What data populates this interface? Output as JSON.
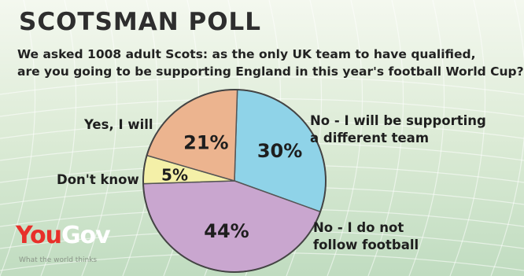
{
  "chart_data": {
    "type": "pie",
    "title": "SCOTSMAN POLL",
    "subtitle": [
      "We asked 1008 adult Scots: as the only UK team to have qualified,",
      "are you going to be supporting England in this year's football World Cup?"
    ],
    "slices": [
      {
        "label": [
          "No - I will be supporting",
          "a different team"
        ],
        "value": 30,
        "value_label": "30%",
        "color": "#8fd3e8"
      },
      {
        "label": [
          "No - I do not",
          "follow football"
        ],
        "value": 44,
        "value_label": "44%",
        "color": "#c9a6cf"
      },
      {
        "label": [
          "Don't know"
        ],
        "value": 5,
        "value_label": "5%",
        "color": "#f4f0a8"
      },
      {
        "label": [
          "Yes, I will"
        ],
        "value": 21,
        "value_label": "21%",
        "color": "#ecb48f"
      }
    ]
  },
  "logo": {
    "part1": "You",
    "part2": "Gov",
    "tagline": "What the world thinks"
  }
}
